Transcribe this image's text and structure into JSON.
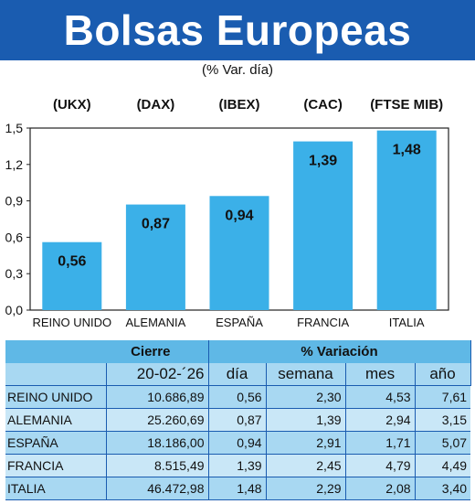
{
  "title": "Bolsas Europeas",
  "subtitle": "(% Var. día)",
  "chart_data": {
    "type": "bar",
    "categories": [
      "REINO UNIDO",
      "ALEMANIA",
      "ESPAÑA",
      "FRANCIA",
      "ITALIA"
    ],
    "indices": [
      "(UKX)",
      "(DAX)",
      "(IBEX)",
      "(CAC)",
      "(FTSE MIB)"
    ],
    "values": [
      0.56,
      0.87,
      0.94,
      1.39,
      1.48
    ],
    "value_labels": [
      "0,56",
      "0,87",
      "0,94",
      "1,39",
      "1,48"
    ],
    "yticks": [
      "0,0",
      "0,3",
      "0,6",
      "0,9",
      "1,2",
      "1,5"
    ],
    "ylim": [
      0,
      1.5
    ],
    "bar_color": "#3bb0e8",
    "grid": false
  },
  "table": {
    "header_cierre": "Cierre",
    "header_variacion": "% Variación",
    "date": "20-02-´26",
    "col_dia": "día",
    "col_semana": "semana",
    "col_mes": "mes",
    "col_anio": "año",
    "rows": [
      {
        "country": "REINO UNIDO",
        "close": "10.686,89",
        "dia": "0,56",
        "semana": "2,30",
        "mes": "4,53",
        "anio": "7,61"
      },
      {
        "country": "ALEMANIA",
        "close": "25.260,69",
        "dia": "0,87",
        "semana": "1,39",
        "mes": "2,94",
        "anio": "3,15"
      },
      {
        "country": "ESPAÑA",
        "close": "18.186,00",
        "dia": "0,94",
        "semana": "2,91",
        "mes": "1,71",
        "anio": "5,07"
      },
      {
        "country": "FRANCIA",
        "close": "8.515,49",
        "dia": "1,39",
        "semana": "2,45",
        "mes": "4,79",
        "anio": "4,49"
      },
      {
        "country": "ITALIA",
        "close": "46.472,98",
        "dia": "1,48",
        "semana": "2,29",
        "mes": "2,08",
        "anio": "3,40"
      }
    ]
  }
}
